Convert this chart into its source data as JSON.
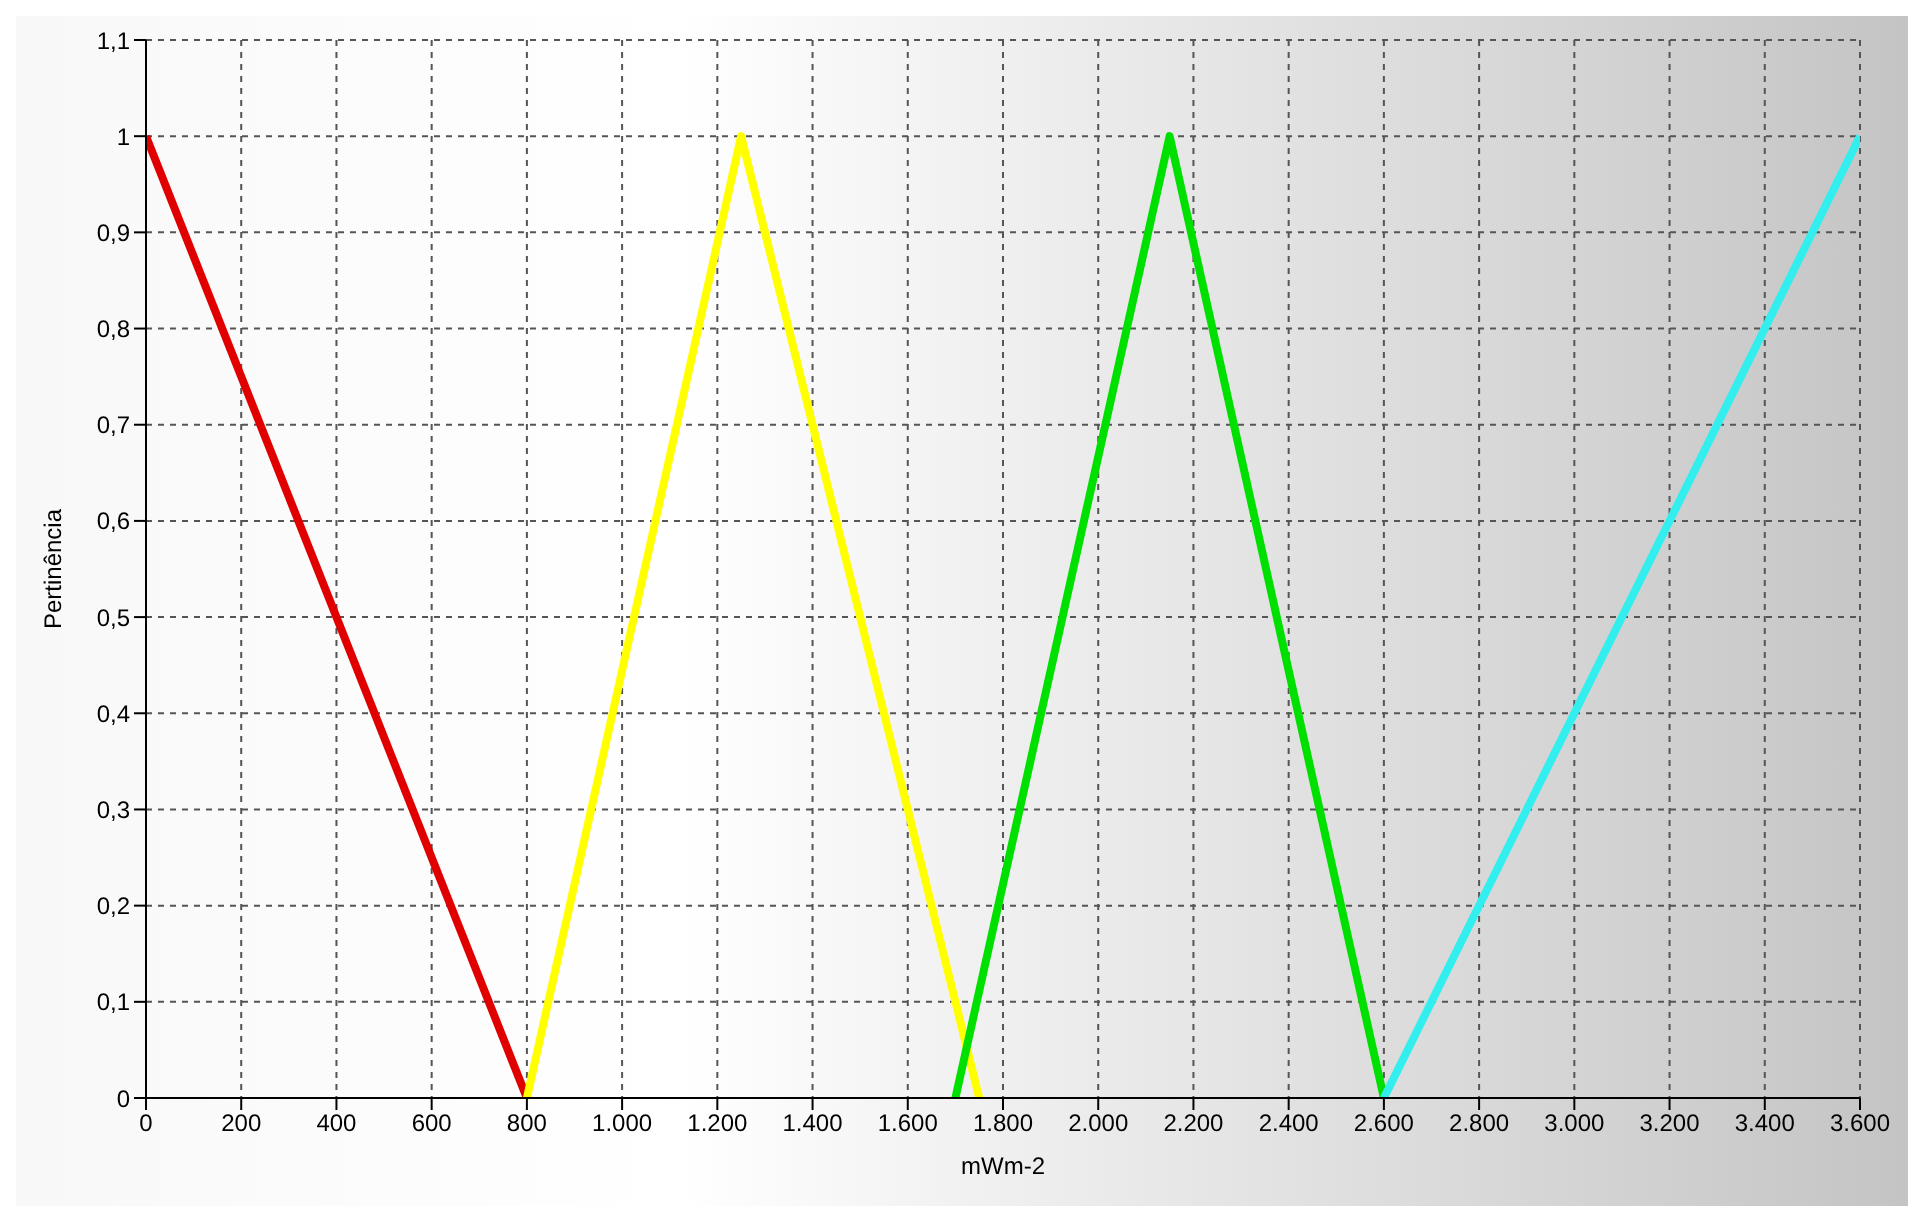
{
  "chart_data": {
    "type": "line",
    "xlabel": "mWm-2",
    "ylabel": "Pertinência",
    "xlim": [
      0,
      3600
    ],
    "ylim": [
      0,
      1.1
    ],
    "xticks": [
      0,
      200,
      400,
      600,
      800,
      {
        "value": 1000,
        "label": "1.000"
      },
      {
        "value": 1200,
        "label": "1.200"
      },
      {
        "value": 1400,
        "label": "1.400"
      },
      {
        "value": 1600,
        "label": "1.600"
      },
      {
        "value": 1800,
        "label": "1.800"
      },
      {
        "value": 2000,
        "label": "2.000"
      },
      {
        "value": 2200,
        "label": "2.200"
      },
      {
        "value": 2400,
        "label": "2.400"
      },
      {
        "value": 2600,
        "label": "2.600"
      },
      {
        "value": 2800,
        "label": "2.800"
      },
      {
        "value": 3000,
        "label": "3.000"
      },
      {
        "value": 3200,
        "label": "3.200"
      },
      {
        "value": 3400,
        "label": "3.400"
      },
      {
        "value": 3600,
        "label": "3.600"
      }
    ],
    "yticks": [
      0,
      {
        "value": 0.1,
        "label": "0,1"
      },
      {
        "value": 0.2,
        "label": "0,2"
      },
      {
        "value": 0.3,
        "label": "0,3"
      },
      {
        "value": 0.4,
        "label": "0,4"
      },
      {
        "value": 0.5,
        "label": "0,5"
      },
      {
        "value": 0.6,
        "label": "0,6"
      },
      {
        "value": 0.7,
        "label": "0,7"
      },
      {
        "value": 0.8,
        "label": "0,8"
      },
      {
        "value": 0.9,
        "label": "0,9"
      },
      1,
      {
        "value": 1.1,
        "label": "1,1"
      }
    ],
    "grid": true,
    "marker": "none",
    "line_style": "solid",
    "series": [
      {
        "color": "#e00000",
        "x": [
          0,
          800
        ],
        "values": [
          1,
          0
        ]
      },
      {
        "color": "#ffff00",
        "x": [
          800,
          1250,
          1750
        ],
        "values": [
          0,
          1,
          0
        ]
      },
      {
        "color": "#00e000",
        "x": [
          1700,
          2150,
          2600
        ],
        "values": [
          0,
          1,
          0
        ]
      },
      {
        "color": "#33eeee",
        "x": [
          2600,
          3600
        ],
        "values": [
          0,
          1
        ]
      }
    ]
  }
}
